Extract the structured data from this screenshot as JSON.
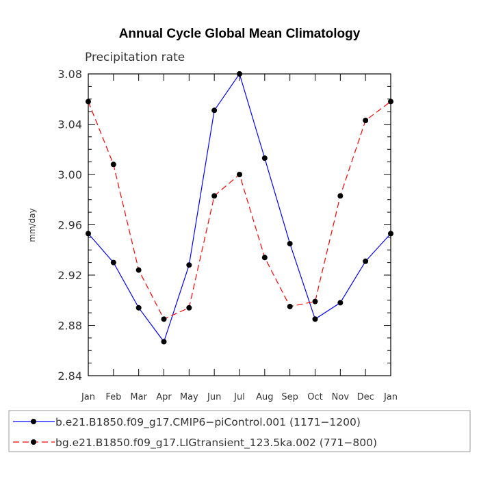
{
  "chart_data": {
    "type": "line",
    "title": "Annual Cycle Global Mean Climatology",
    "subtitle": "Precipitation rate",
    "xlabel": "",
    "ylabel": "mm/day",
    "categories": [
      "Jan",
      "Feb",
      "Mar",
      "Apr",
      "May",
      "Jun",
      "Jul",
      "Aug",
      "Sep",
      "Oct",
      "Nov",
      "Dec",
      "Jan"
    ],
    "ylim": [
      2.84,
      3.08
    ],
    "yticks": [
      "2.84",
      "2.88",
      "2.92",
      "2.96",
      "3.00",
      "3.04",
      "3.08"
    ],
    "ytick_values": [
      2.84,
      2.88,
      2.92,
      2.96,
      3.0,
      3.04,
      3.08
    ],
    "series": [
      {
        "name": "b.e21.B1850.f09_g17.CMIP6-piControl.001 (1171-1200)",
        "legend_label": "b.e21.B1850.f09_g17.CMIP6−piControl.001 (1171−1200)",
        "color": "#0000ff",
        "style": "solid",
        "values": [
          2.953,
          2.93,
          2.894,
          2.867,
          2.928,
          3.051,
          3.08,
          3.013,
          2.945,
          2.885,
          2.898,
          2.931,
          2.953
        ]
      },
      {
        "name": "bg.e21.B1850.f09_g17.LIGtransient_123.5ka.002 (771-800)",
        "legend_label": "bg.e21.B1850.f09_g17.LIGtransient_123.5ka.002 (771−800)",
        "color": "#ff0000",
        "style": "dashed",
        "values": [
          3.058,
          3.008,
          2.924,
          2.885,
          2.894,
          2.983,
          3.0,
          2.934,
          2.895,
          2.899,
          2.983,
          3.043,
          3.058
        ]
      }
    ],
    "legend_position": "bottom"
  }
}
